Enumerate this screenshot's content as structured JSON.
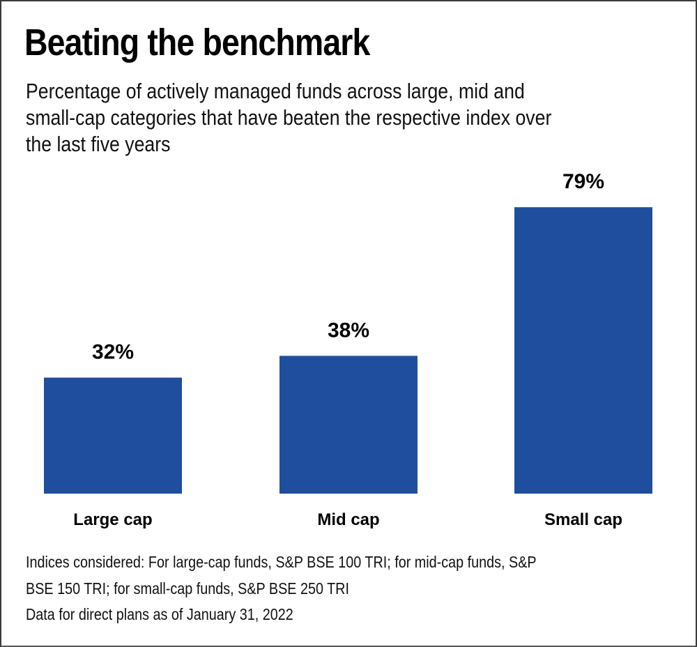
{
  "chart_data": {
    "type": "bar",
    "title": "Beating the benchmark",
    "subtitle_lines": [
      "Percentage of actively managed funds across large, mid and",
      "small-cap categories that have beaten the respective index over",
      "the last five years"
    ],
    "categories": [
      "Large cap",
      "Mid cap",
      "Small cap"
    ],
    "values": [
      32,
      38,
      79
    ],
    "value_labels": [
      "32%",
      "38%",
      "79%"
    ],
    "xlabel": "",
    "ylabel": "",
    "ylim": [
      0,
      100
    ],
    "grid": false,
    "bar_color": "#1f4e9e",
    "notes": [
      "Indices considered: For large-cap funds, S&P BSE 100 TRI; for mid-cap funds, S&P",
      "BSE 150 TRI; for small-cap funds, S&P BSE 250 TRI",
      "Data for direct plans as of January 31, 2022"
    ]
  }
}
